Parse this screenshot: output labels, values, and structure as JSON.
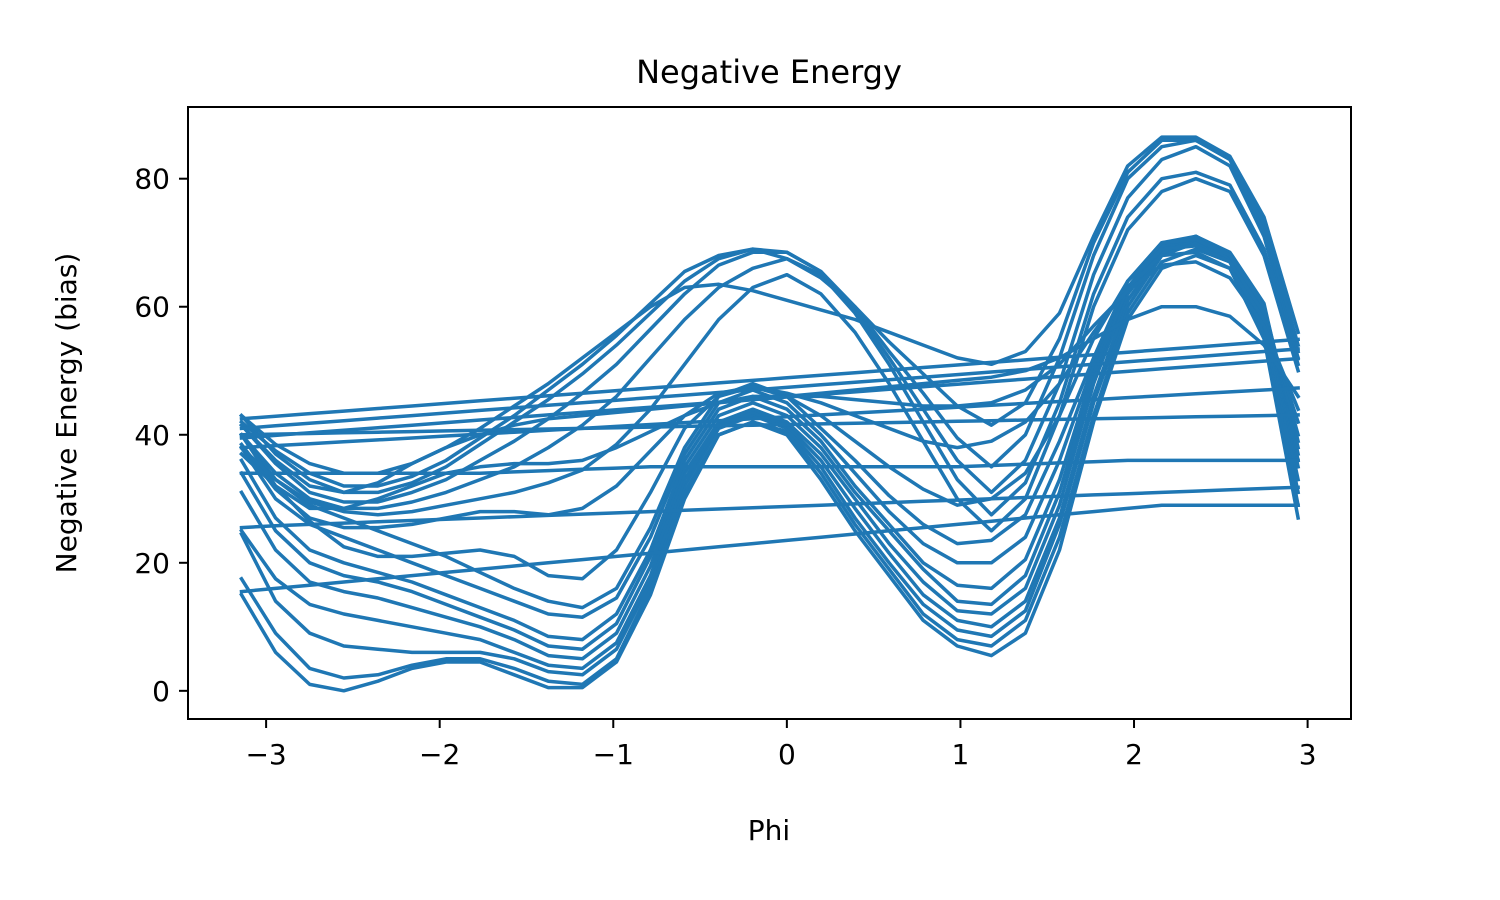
{
  "chart_data": {
    "type": "line",
    "title": "Negative Energy",
    "xlabel": "Phi",
    "ylabel": "Negative Energy (bias)",
    "xlim": [
      -3.45,
      3.25
    ],
    "ylim": [
      -4.4,
      91.2
    ],
    "grid": false,
    "legend": "none",
    "line_color": "#1f77b4",
    "x_ticks": [
      -3,
      -2,
      -1,
      0,
      1,
      2,
      3
    ],
    "x_tick_labels": [
      "−3",
      "−2",
      "−1",
      "0",
      "1",
      "2",
      "3"
    ],
    "y_ticks": [
      0,
      20,
      40,
      60,
      80
    ],
    "y_tick_labels": [
      "0",
      "20",
      "40",
      "60",
      "80"
    ],
    "x": [
      -3.1416,
      -2.9452,
      -2.7489,
      -2.5525,
      -2.3562,
      -2.1598,
      -1.9635,
      -1.7671,
      -1.5708,
      -1.3744,
      -1.1781,
      -0.9817,
      -0.7854,
      -0.589,
      -0.3927,
      -0.1963,
      0.0,
      0.1963,
      0.3927,
      0.589,
      0.7854,
      0.9817,
      1.1781,
      1.3744,
      1.5708,
      1.7671,
      1.9635,
      2.1598,
      2.3562,
      2.5525,
      2.7489,
      2.9452
    ],
    "series": [
      {
        "values": [
          15,
          6,
          1,
          0,
          1.5,
          3.5,
          4.5,
          4.5,
          2.5,
          0.5,
          0.5,
          4.5,
          15,
          30,
          40,
          42,
          40,
          33,
          25,
          18,
          11,
          7,
          5.5,
          9,
          22,
          42,
          58,
          66,
          68,
          66,
          55,
          27
        ]
      },
      {
        "values": [
          17.5,
          9,
          3.5,
          2,
          2.5,
          4,
          5,
          5,
          3.5,
          1.5,
          1,
          5,
          16,
          31,
          40,
          42,
          40.5,
          34,
          26,
          19,
          12,
          8,
          7,
          11,
          24,
          43,
          59,
          67,
          69,
          67,
          56,
          29
        ]
      },
      {
        "values": [
          24.5,
          14,
          9,
          7,
          6.5,
          6,
          6,
          6,
          5,
          3,
          2.5,
          6.5,
          17,
          32,
          41,
          43,
          41,
          35,
          27,
          20,
          13.5,
          9.5,
          8.5,
          12.5,
          26,
          45,
          60,
          68,
          70,
          67,
          57,
          31
        ]
      },
      {
        "values": [
          25,
          17.5,
          13.5,
          12,
          11,
          10,
          9,
          8,
          6,
          4,
          3.5,
          7.5,
          18,
          33,
          41.5,
          43.5,
          41.5,
          36,
          28.5,
          21.5,
          15,
          11,
          10,
          14,
          27,
          46,
          61,
          68.5,
          70.5,
          67.5,
          58,
          33
        ]
      },
      {
        "values": [
          31,
          22,
          17,
          15.5,
          14.5,
          13,
          11.5,
          10,
          8,
          5.5,
          5,
          9,
          19.5,
          34,
          42,
          44,
          42,
          37,
          30,
          23,
          17,
          12.5,
          12,
          16,
          29,
          48,
          62,
          69,
          71,
          68,
          59,
          35
        ]
      },
      {
        "values": [
          34,
          25,
          20,
          18,
          17,
          15.5,
          13.5,
          11.5,
          9.5,
          7,
          6.5,
          10.5,
          21,
          35,
          43,
          45,
          43,
          38,
          31,
          25,
          19,
          14,
          13.5,
          18,
          31,
          49,
          63,
          69,
          71,
          68,
          60,
          36
        ]
      },
      {
        "values": [
          36,
          27,
          22,
          20,
          18.5,
          17,
          15,
          13,
          11,
          8.5,
          8,
          12,
          22,
          36,
          44,
          46,
          44,
          39,
          32,
          26,
          20,
          16.5,
          16,
          20.5,
          33,
          50,
          63,
          69.5,
          71,
          68.5,
          60.5,
          37
        ]
      },
      {
        "values": [
          38,
          30,
          26,
          24,
          22,
          20,
          18,
          16,
          14,
          12,
          11.5,
          14.5,
          24,
          37,
          45,
          47,
          45,
          40,
          34,
          28,
          23,
          20,
          20,
          24,
          36,
          51,
          64,
          70,
          71,
          68,
          60,
          38
        ]
      },
      {
        "values": [
          40,
          33,
          29,
          27,
          25,
          23,
          21,
          18.5,
          16,
          14,
          13,
          16,
          25.5,
          38,
          46,
          48,
          46,
          41,
          36,
          30.5,
          26,
          23,
          23.5,
          27.5,
          39,
          52,
          64,
          70,
          70.5,
          68,
          60,
          39
        ]
      },
      {
        "values": [
          37,
          32,
          26.5,
          22.5,
          21,
          21,
          21.5,
          22,
          21,
          18,
          17.5,
          22,
          31,
          41,
          46,
          47.5,
          46,
          43,
          39,
          35,
          31.5,
          29,
          30,
          34,
          43,
          55,
          64,
          69,
          69.5,
          67,
          59,
          40
        ]
      },
      {
        "values": [
          38.5,
          31.5,
          27,
          25.5,
          25.5,
          26,
          27,
          28,
          28,
          27.5,
          28.5,
          32,
          37.5,
          43,
          46.5,
          47.5,
          46.5,
          45,
          43,
          41,
          39,
          38,
          39,
          42,
          48,
          56,
          63,
          68,
          68.5,
          66,
          58,
          42
        ]
      },
      {
        "values": [
          40,
          32,
          28.5,
          28.5,
          30,
          32,
          34,
          35,
          35.5,
          35.5,
          36,
          38,
          40.5,
          43,
          45,
          46,
          46,
          46,
          45.5,
          45,
          44.5,
          44.5,
          45,
          47,
          51,
          57,
          62.5,
          66.5,
          67,
          64.5,
          57,
          44
        ]
      },
      {
        "values": [
          41.5,
          36,
          32,
          31,
          32.5,
          35.5,
          38,
          40,
          41.5,
          42.5,
          43,
          43.5,
          44,
          44.5,
          45,
          45.5,
          46,
          46.5,
          47,
          47.5,
          48,
          48.5,
          49,
          50,
          52,
          55,
          58,
          60,
          60,
          58.5,
          54,
          46
        ]
      },
      {
        "values": [
          38,
          33,
          29.5,
          28,
          27.5,
          28,
          29,
          30,
          31,
          32.5,
          34.5,
          38.5,
          44,
          51,
          58,
          63,
          65,
          62,
          56,
          48,
          39,
          30,
          25,
          30,
          43,
          60,
          72,
          78,
          80,
          78,
          68,
          50
        ]
      },
      {
        "values": [
          40,
          34,
          30,
          28.5,
          28.5,
          29.5,
          31,
          33,
          35,
          38,
          41.5,
          46,
          52,
          58,
          63,
          66,
          67.5,
          65,
          59,
          51,
          42,
          33,
          27.5,
          32.5,
          45,
          62,
          74,
          80,
          81,
          79,
          69,
          51
        ]
      },
      {
        "values": [
          41.5,
          35.5,
          31,
          29.5,
          29.5,
          31,
          33,
          36,
          39,
          42.5,
          46.5,
          51,
          56.5,
          62,
          66.5,
          68.5,
          68.5,
          65.5,
          59.5,
          52,
          44,
          36,
          31,
          36,
          48,
          65,
          77,
          83,
          85,
          82,
          71,
          52
        ]
      },
      {
        "values": [
          43,
          37,
          33,
          31,
          31,
          32.5,
          35,
          38.5,
          42,
          45.5,
          49.5,
          54,
          59,
          64,
          67.5,
          69,
          68.5,
          65.5,
          60,
          53,
          46.5,
          39.5,
          35,
          40,
          52,
          68,
          80,
          85,
          86,
          83,
          72,
          53
        ]
      },
      {
        "values": [
          42,
          37.5,
          34,
          32,
          32,
          33.5,
          36,
          39.5,
          43,
          47,
          51,
          55.5,
          60.5,
          65.5,
          68,
          69,
          67.5,
          64.5,
          60,
          54.5,
          49.5,
          44.5,
          41.5,
          45,
          55,
          70,
          81,
          86,
          86,
          83,
          73,
          54
        ]
      },
      {
        "values": [
          43,
          38.5,
          35.5,
          34,
          34,
          35.5,
          38,
          41,
          44.5,
          48,
          52,
          56,
          60,
          63,
          63.5,
          62.5,
          61,
          59.5,
          58,
          56,
          54,
          52,
          51,
          53,
          59,
          71,
          82,
          86.5,
          86.5,
          83.5,
          74,
          56
        ]
      },
      {
        "values": [
          34,
          34,
          34,
          34,
          34,
          34,
          34,
          34,
          34.2,
          34.4,
          34.6,
          34.8,
          35,
          35,
          35,
          35,
          35,
          35,
          35,
          35,
          35,
          35,
          35.2,
          35.4,
          35.6,
          35.8,
          36,
          36,
          36,
          36,
          36,
          36
        ]
      },
      {
        "values": [
          25.5,
          25.8,
          26,
          26.2,
          26.4,
          26.6,
          26.8,
          27,
          27.2,
          27.4,
          27.6,
          27.8,
          28,
          28.2,
          28.4,
          28.6,
          28.8,
          29,
          29.2,
          29.4,
          29.6,
          29.8,
          30,
          30.2,
          30.4,
          30.6,
          30.8,
          31,
          31.2,
          31.4,
          31.6,
          31.8
        ]
      },
      {
        "values": [
          15.5,
          16,
          16.5,
          17,
          17.5,
          18,
          18.5,
          19,
          19.5,
          20,
          20.5,
          21,
          21.5,
          22,
          22.5,
          23,
          23.5,
          24,
          24.5,
          25,
          25.5,
          26,
          26.5,
          27,
          27.5,
          28,
          28.5,
          29,
          29,
          29,
          29,
          29
        ]
      },
      {
        "values": [
          38,
          38.3,
          38.6,
          38.9,
          39.2,
          39.5,
          39.8,
          40.1,
          40.4,
          40.7,
          41,
          41.3,
          41.6,
          41.9,
          42.2,
          42.5,
          42.8,
          43.1,
          43.4,
          43.7,
          44,
          44.3,
          44.6,
          44.9,
          45.2,
          45.5,
          45.8,
          46.1,
          46.4,
          46.7,
          47,
          47.3
        ]
      },
      {
        "values": [
          39.5,
          39.9,
          40.3,
          40.7,
          41.1,
          41.5,
          41.9,
          42.3,
          42.7,
          43.1,
          43.5,
          43.9,
          44.3,
          44.7,
          45.1,
          45.5,
          45.9,
          46.3,
          46.7,
          47.1,
          47.5,
          47.9,
          48.3,
          48.7,
          49.1,
          49.5,
          49.9,
          50.3,
          50.7,
          51.1,
          51.5,
          51.9
        ]
      },
      {
        "values": [
          41,
          41.4,
          41.8,
          42.2,
          42.6,
          43,
          43.4,
          43.8,
          44.2,
          44.6,
          45,
          45.4,
          45.8,
          46.2,
          46.6,
          47,
          47.4,
          47.8,
          48.2,
          48.6,
          49,
          49.4,
          49.8,
          50.2,
          50.6,
          51,
          51.4,
          51.8,
          52.2,
          52.6,
          53,
          53.4
        ]
      },
      {
        "values": [
          42.5,
          42.9,
          43.3,
          43.7,
          44.1,
          44.5,
          44.9,
          45.3,
          45.7,
          46.1,
          46.5,
          46.9,
          47.3,
          47.7,
          48.1,
          48.5,
          48.9,
          49.3,
          49.7,
          50.1,
          50.5,
          50.9,
          51.3,
          51.7,
          52.1,
          52.5,
          52.9,
          53.3,
          53.7,
          54.1,
          54.5,
          54.9
        ]
      },
      {
        "values": [
          40,
          40.1,
          40.2,
          40.3,
          40.4,
          40.5,
          40.6,
          40.7,
          40.8,
          40.9,
          41,
          41.1,
          41.2,
          41.3,
          41.4,
          41.5,
          41.6,
          41.7,
          41.8,
          41.9,
          42,
          42.1,
          42.2,
          42.3,
          42.4,
          42.5,
          42.6,
          42.7,
          42.8,
          42.9,
          43,
          43.1
        ]
      }
    ]
  }
}
